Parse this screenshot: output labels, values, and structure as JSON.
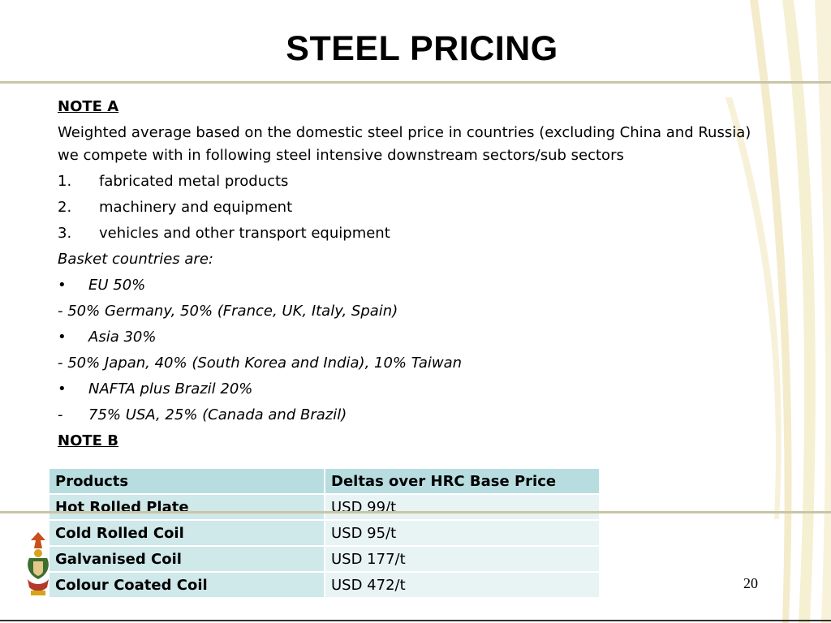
{
  "title": "STEEL PRICING",
  "note_a": {
    "heading": "NOTE A",
    "intro": "Weighted average based on the domestic steel price in countries (excluding China and Russia) we compete with in following steel intensive downstream sectors/sub sectors",
    "sectors": [
      {
        "num": "1.",
        "text": "fabricated metal products"
      },
      {
        "num": "2.",
        "text": "machinery and equipment"
      },
      {
        "num": "3.",
        "text": "vehicles and other transport equipment"
      }
    ],
    "basket_label": "Basket countries are:",
    "basket": [
      {
        "bullet": "•",
        "text": "EU 50%"
      },
      {
        "detail": "- 50% Germany, 50% (France, UK, Italy, Spain)"
      },
      {
        "bullet": "•",
        "text": "Asia 30%"
      },
      {
        "detail": "- 50% Japan, 40% (South Korea and India), 10% Taiwan"
      },
      {
        "bullet": "•",
        "text": "NAFTA plus Brazil 20%"
      },
      {
        "bullet": "-",
        "text": "75% USA, 25% (Canada and Brazil)"
      }
    ]
  },
  "note_b": {
    "heading": "NOTE B",
    "table": {
      "headers": [
        "Products",
        "Deltas over HRC Base Price"
      ],
      "rows": [
        [
          "Hot Rolled Plate",
          "USD 99/t"
        ],
        [
          "Cold Rolled Coil",
          "USD 95/t"
        ],
        [
          "Galvanised Coil",
          "USD 177/t"
        ],
        [
          "Colour Coated Coil",
          "USD 472/t"
        ]
      ]
    }
  },
  "page_number": "20",
  "colors": {
    "table_header": "#b8dde0",
    "table_product": "#cfe8ea",
    "table_value": "#e8f3f4",
    "rule": "#c9c5a6"
  },
  "icons": {
    "emblem": "coat-of-arms-emblem",
    "decoration": "curved-stripes-decoration"
  }
}
